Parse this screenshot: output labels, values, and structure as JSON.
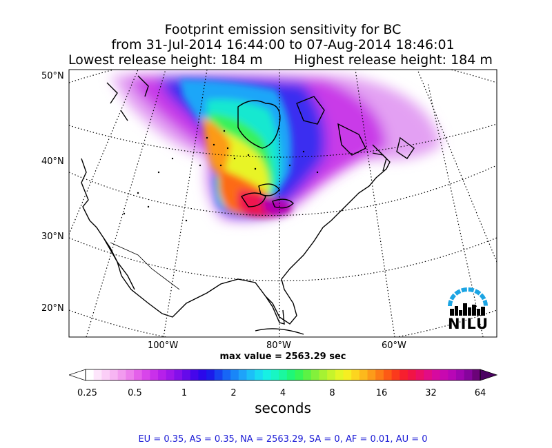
{
  "title": {
    "line1": "Footprint emission sensitivity for BC",
    "line2": "from 31-Jul-2014 16:44:00 to 07-Aug-2014 18:46:01",
    "lowest": "Lowest release height: 184 m",
    "highest": "Highest release height: 184 m"
  },
  "map": {
    "lat_labels": [
      "50°N",
      "40°N",
      "30°N",
      "20°N"
    ],
    "lon_labels": [
      "100°W",
      "80°W",
      "60°W"
    ],
    "max_value_text": "max value = 2563.29 sec"
  },
  "colorbar": {
    "ticks": [
      "0.25",
      "0.5",
      "1",
      "2",
      "4",
      "8",
      "16",
      "32",
      "64"
    ],
    "units": "seconds",
    "colors": [
      "#ffffff",
      "#fde5fb",
      "#fbcef7",
      "#f7b5f3",
      "#f29bef",
      "#ec7fec",
      "#e460ea",
      "#d845ea",
      "#c930ea",
      "#b620ea",
      "#9f17ea",
      "#8410ea",
      "#650aea",
      "#4506ea",
      "#2b08ea",
      "#1b1bea",
      "#1742f0",
      "#1766f6",
      "#1986f8",
      "#1ea3fa",
      "#1cbff8",
      "#19dbf2",
      "#17f0e4",
      "#18f6c4",
      "#1af89f",
      "#1ff777",
      "#36f657",
      "#5cf245",
      "#83f03b",
      "#a6f232",
      "#c6f42b",
      "#e3f626",
      "#f6ee22",
      "#fcd51f",
      "#fdb91c",
      "#fd9b19",
      "#fd7b16",
      "#fd5a15",
      "#fb3a1c",
      "#f71f2e",
      "#f11446",
      "#eb0f66",
      "#e20c85",
      "#d60a9f",
      "#c808b0",
      "#b806b6",
      "#a005b0",
      "#86049d",
      "#6b0378"
    ],
    "extend_low_color": "#ffffff",
    "extend_high_color": "#4a0262"
  },
  "logo": {
    "text": "NILU",
    "arc_color": "#1ba4e3"
  },
  "regions_text": "EU = 0.35,  AS = 0.35,  NA = 2563.29,  SA = 0,  AF = 0.01,  AU = 0"
}
